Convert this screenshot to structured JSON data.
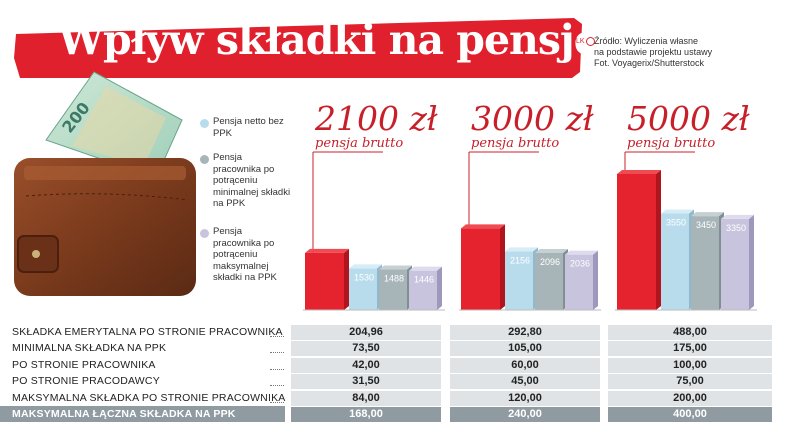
{
  "title": "Wpływ składki na pensję",
  "source": {
    "badge": "LK",
    "line1": "Źródło: Wyliczenia własne",
    "line2": "na podstawie projektu ustawy",
    "line3": "Fot. Voyagerix/Shutterstock"
  },
  "colors": {
    "brand_red": "#e0202c",
    "bar_red": "#e4232f",
    "bar_blue": "#b9dced",
    "bar_gray": "#a7b4b8",
    "bar_lavender": "#c8c4dd",
    "table_row": "#dfe3e6",
    "table_total": "#8f9ba1",
    "group_label_red": "#c8202a"
  },
  "legend": [
    {
      "label": "Pensja netto bez PPK",
      "color": "#b9dced"
    },
    {
      "label": "Pensja pracownika po potrąceniu minimalnej składki na PPK",
      "color": "#a7b4b8"
    },
    {
      "label": "Pensja pracownika po potrąceniu maksymalnej składki na PPK",
      "color": "#c8c4dd"
    }
  ],
  "chart_data": {
    "type": "bar",
    "categories": [
      "2100 zł pensja brutto",
      "3000 zł pensja brutto",
      "5000 zł pensja brutto"
    ],
    "groups": [
      {
        "amount": "2100 zł",
        "caption": "pensja brutto"
      },
      {
        "amount": "3000 zł",
        "caption": "pensja brutto"
      },
      {
        "amount": "5000 zł",
        "caption": "pensja brutto"
      }
    ],
    "series": [
      {
        "name": "Pensja brutto",
        "values": [
          2100,
          3000,
          5000
        ],
        "labels": [
          "",
          "",
          ""
        ]
      },
      {
        "name": "Pensja netto bez PPK",
        "values": [
          1530,
          2156,
          3550
        ],
        "labels": [
          "1530",
          "2156",
          "3550"
        ]
      },
      {
        "name": "Pensja pracownika po potrąceniu minimalnej składki na PPK",
        "values": [
          1488,
          2096,
          3450
        ],
        "labels": [
          "1488",
          "2096",
          "3450"
        ]
      },
      {
        "name": "Pensja pracownika po potrąceniu maksymalnej składki na PPK",
        "values": [
          1446,
          2036,
          3350
        ],
        "labels": [
          "1446",
          "2036",
          "3350"
        ]
      }
    ],
    "ylim": [
      0,
      5000
    ],
    "grid": false
  },
  "table": {
    "rows": [
      {
        "label": "Składka emerytalna po stronie pracownika",
        "values": [
          "204,96",
          "292,80",
          "488,00"
        ],
        "total": false
      },
      {
        "label": "Minimalna składka na PPK",
        "values": [
          "73,50",
          "105,00",
          "175,00"
        ],
        "total": false
      },
      {
        "label": "Po stronie pracownika",
        "values": [
          "42,00",
          "60,00",
          "100,00"
        ],
        "total": false
      },
      {
        "label": "Po stronie pracodawcy",
        "values": [
          "31,50",
          "45,00",
          "75,00"
        ],
        "total": false
      },
      {
        "label": "Maksymalna składka po stronie pracownika",
        "values": [
          "84,00",
          "120,00",
          "200,00"
        ],
        "total": false
      },
      {
        "label": "Maksymalna łączna składka na PPK",
        "values": [
          "168,00",
          "240,00",
          "400,00"
        ],
        "total": true
      }
    ]
  }
}
